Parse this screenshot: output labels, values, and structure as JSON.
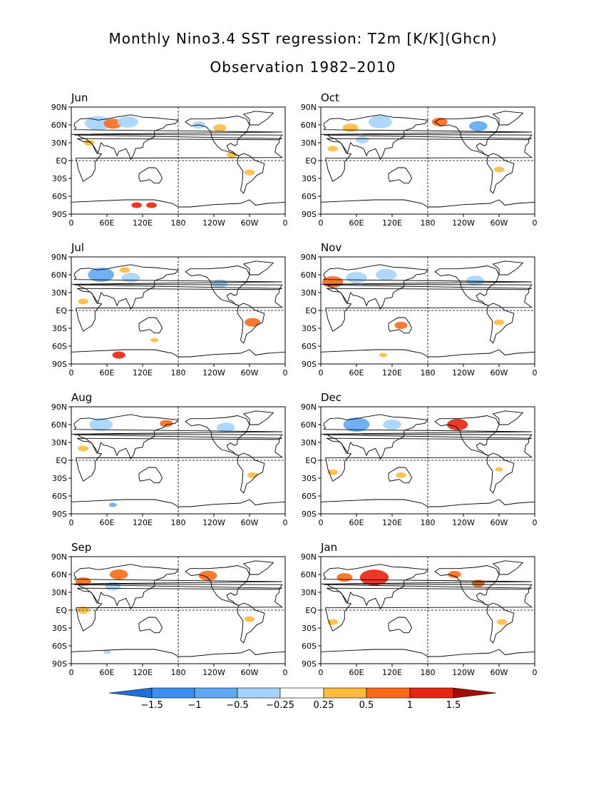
{
  "title": "Monthly Nino3.4 SST regression: T2m [K/K](Ghcn)",
  "subtitle": "Observation 1982–2010",
  "x_ticks": [
    "0",
    "60E",
    "120E",
    "180",
    "120W",
    "60W",
    "0"
  ],
  "y_ticks": [
    "90N",
    "60N",
    "30N",
    "EQ",
    "30S",
    "60S",
    "90S"
  ],
  "colors": {
    "neg_extreme": "#1e6fd8",
    "neg_strong": "#3b8ef0",
    "neg_mid": "#5fa8f2",
    "neg_weak": "#a5d4fb",
    "pos_weak": "#fdbb3f",
    "pos_mid": "#fb6a1a",
    "pos_strong": "#e8230f",
    "pos_extreme": "#a40b07",
    "coast": "#000000"
  },
  "chart_data": {
    "type": "heatmap",
    "variable": "T2m",
    "units": "K/K",
    "color_levels": [
      -1.5,
      -1,
      -0.5,
      -0.25,
      0.25,
      0.5,
      1,
      1.5
    ],
    "level_labels": [
      "−1.5",
      "−1",
      "−0.5",
      "−0.25",
      "0.25",
      "0.5",
      "1",
      "1.5"
    ],
    "lon_range": [
      0,
      360
    ],
    "lat_range": [
      -90,
      90
    ],
    "panels": [
      {
        "month": "Jun",
        "features": [
          {
            "lon": 45,
            "lat": 63,
            "r": 10,
            "v": -0.5
          },
          {
            "lon": 70,
            "lat": 62,
            "r": 7,
            "v": 0.5
          },
          {
            "lon": 95,
            "lat": 65,
            "r": 8,
            "v": -0.3
          },
          {
            "lon": 30,
            "lat": 30,
            "r": 4,
            "v": 0.4
          },
          {
            "lon": 215,
            "lat": 60,
            "r": 5,
            "v": -0.4
          },
          {
            "lon": 250,
            "lat": 55,
            "r": 5,
            "v": 0.4
          },
          {
            "lon": 270,
            "lat": 10,
            "r": 4,
            "v": 0.4
          },
          {
            "lon": 300,
            "lat": -20,
            "r": 4,
            "v": 0.4
          },
          {
            "lon": 110,
            "lat": -75,
            "r": 4,
            "v": 1.2
          },
          {
            "lon": 135,
            "lat": -75,
            "r": 4,
            "v": 1.2
          }
        ]
      },
      {
        "month": "Oct",
        "features": [
          {
            "lon": 100,
            "lat": 65,
            "r": 9,
            "v": -0.4
          },
          {
            "lon": 50,
            "lat": 55,
            "r": 6,
            "v": 0.4
          },
          {
            "lon": 200,
            "lat": 65,
            "r": 6,
            "v": 0.8
          },
          {
            "lon": 265,
            "lat": 58,
            "r": 7,
            "v": -0.8
          },
          {
            "lon": 20,
            "lat": 20,
            "r": 4,
            "v": 0.4
          },
          {
            "lon": 300,
            "lat": -15,
            "r": 4,
            "v": 0.4
          },
          {
            "lon": 70,
            "lat": 35,
            "r": 5,
            "v": -0.3
          }
        ]
      },
      {
        "month": "Jul",
        "features": [
          {
            "lon": 50,
            "lat": 60,
            "r": 10,
            "v": -0.6
          },
          {
            "lon": 100,
            "lat": 55,
            "r": 7,
            "v": -0.3
          },
          {
            "lon": 90,
            "lat": 68,
            "r": 4,
            "v": 0.4
          },
          {
            "lon": 20,
            "lat": 15,
            "r": 4,
            "v": 0.4
          },
          {
            "lon": 250,
            "lat": 45,
            "r": 6,
            "v": -0.4
          },
          {
            "lon": 305,
            "lat": -20,
            "r": 6,
            "v": 0.8
          },
          {
            "lon": 80,
            "lat": -75,
            "r": 5,
            "v": 1.2
          },
          {
            "lon": 140,
            "lat": -50,
            "r": 3,
            "v": 0.4
          }
        ]
      },
      {
        "month": "Nov",
        "features": [
          {
            "lon": 20,
            "lat": 48,
            "r": 8,
            "v": 0.8
          },
          {
            "lon": 60,
            "lat": 55,
            "r": 8,
            "v": -0.4
          },
          {
            "lon": 110,
            "lat": 60,
            "r": 8,
            "v": -0.5
          },
          {
            "lon": 135,
            "lat": -25,
            "r": 5,
            "v": 0.8
          },
          {
            "lon": 260,
            "lat": 50,
            "r": 7,
            "v": -0.4
          },
          {
            "lon": 300,
            "lat": -20,
            "r": 4,
            "v": 0.4
          },
          {
            "lon": 105,
            "lat": -75,
            "r": 3,
            "v": 0.4
          }
        ]
      },
      {
        "month": "Aug",
        "features": [
          {
            "lon": 50,
            "lat": 60,
            "r": 9,
            "v": -0.5
          },
          {
            "lon": 160,
            "lat": 62,
            "r": 5,
            "v": 0.8
          },
          {
            "lon": 260,
            "lat": 55,
            "r": 7,
            "v": -0.5
          },
          {
            "lon": 305,
            "lat": -25,
            "r": 4,
            "v": 0.4
          },
          {
            "lon": 20,
            "lat": 20,
            "r": 4,
            "v": 0.4
          },
          {
            "lon": 70,
            "lat": -75,
            "r": 3,
            "v": -0.6
          }
        ]
      },
      {
        "month": "Dec",
        "features": [
          {
            "lon": 60,
            "lat": 60,
            "r": 10,
            "v": -0.6
          },
          {
            "lon": 120,
            "lat": 60,
            "r": 7,
            "v": -0.4
          },
          {
            "lon": 230,
            "lat": 60,
            "r": 8,
            "v": 1.0
          },
          {
            "lon": 135,
            "lat": -25,
            "r": 4,
            "v": 0.4
          },
          {
            "lon": 20,
            "lat": -20,
            "r": 4,
            "v": 0.4
          },
          {
            "lon": 300,
            "lat": -15,
            "r": 3,
            "v": 0.4
          }
        ]
      },
      {
        "month": "Sep",
        "features": [
          {
            "lon": 20,
            "lat": 48,
            "r": 6,
            "v": 0.8
          },
          {
            "lon": 80,
            "lat": 60,
            "r": 7,
            "v": 0.6
          },
          {
            "lon": 70,
            "lat": 40,
            "r": 6,
            "v": -0.3
          },
          {
            "lon": 230,
            "lat": 58,
            "r": 7,
            "v": 0.8
          },
          {
            "lon": 20,
            "lat": 0,
            "r": 5,
            "v": 0.4
          },
          {
            "lon": 300,
            "lat": -15,
            "r": 4,
            "v": 0.4
          },
          {
            "lon": 60,
            "lat": -70,
            "r": 3,
            "v": -0.4
          }
        ]
      },
      {
        "month": "Jan",
        "features": [
          {
            "lon": 90,
            "lat": 55,
            "r": 11,
            "v": 1.0
          },
          {
            "lon": 40,
            "lat": 55,
            "r": 6,
            "v": 0.6
          },
          {
            "lon": 225,
            "lat": 60,
            "r": 5,
            "v": 0.6
          },
          {
            "lon": 265,
            "lat": 45,
            "r": 5,
            "v": 0.5
          },
          {
            "lon": 20,
            "lat": -20,
            "r": 4,
            "v": 0.4
          },
          {
            "lon": 305,
            "lat": -20,
            "r": 4,
            "v": 0.4
          }
        ]
      }
    ]
  }
}
